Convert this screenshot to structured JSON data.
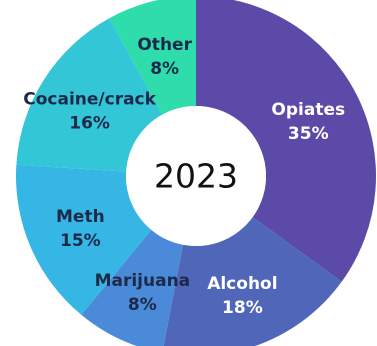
{
  "chart_data": {
    "type": "pie",
    "variant": "donut",
    "center_label": "2023",
    "slices": [
      {
        "label": "Opiates",
        "value_text": "35%",
        "value": 35,
        "color": "#5b4aa8",
        "text_color": "#ffffff"
      },
      {
        "label": "Alcohol",
        "value_text": "18%",
        "value": 18,
        "color": "#5066b9",
        "text_color": "#ffffff"
      },
      {
        "label": "Marijuana",
        "value_text": "8%",
        "value": 8,
        "color": "#4a8ad8",
        "text_color": "#1c2a4a"
      },
      {
        "label": "Meth",
        "value_text": "15%",
        "value": 15,
        "color": "#35b6e4",
        "text_color": "#1c2a4a"
      },
      {
        "label": "Cocaine/crack",
        "value_text": "16%",
        "value": 16,
        "color": "#33c6d6",
        "text_color": "#1c2a4a"
      },
      {
        "label": "Other",
        "value_text": "8%",
        "value": 8,
        "color": "#2fdcac",
        "text_color": "#1c2a4a"
      }
    ]
  }
}
